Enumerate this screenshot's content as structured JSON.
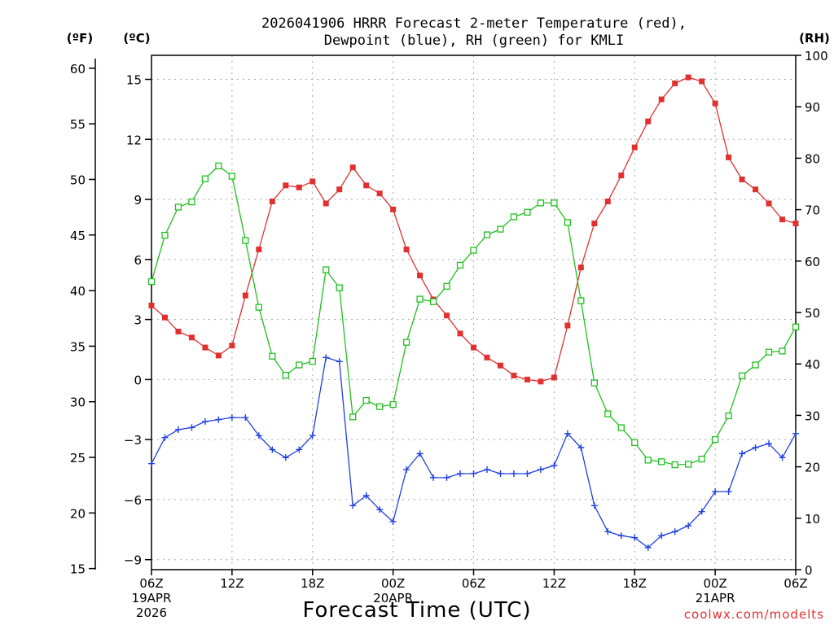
{
  "chart_data": {
    "type": "line",
    "title_line1": "2026041906 HRRR Forecast 2-meter Temperature (red),",
    "title_line2": "Dewpoint (blue), RH (green) for KMLI",
    "xlabel": "Forecast Time (UTC)",
    "credit": "coolwx.com/modelts",
    "units": {
      "fahrenheit": "(ºF)",
      "celsius": "(ºC)",
      "rh": "(RH)"
    },
    "x_range_hours": [
      0,
      48
    ],
    "celsius_ylim": [
      -9.5,
      16.2
    ],
    "rh_ylim": [
      0,
      100
    ],
    "celsius_ticks": [
      {
        "value": 15,
        "label": "15"
      },
      {
        "value": 12,
        "label": "12"
      },
      {
        "value": 9,
        "label": "9"
      },
      {
        "value": 6,
        "label": "6"
      },
      {
        "value": 3,
        "label": "3"
      },
      {
        "value": 0,
        "label": "0"
      },
      {
        "value": -3,
        "label": "−3"
      },
      {
        "value": -6,
        "label": "−6"
      },
      {
        "value": -9,
        "label": "−9"
      }
    ],
    "fahrenheit_ticks": [
      "60",
      "55",
      "50",
      "45",
      "40",
      "35",
      "30",
      "25",
      "20",
      "15"
    ],
    "rh_ticks": [
      "100",
      "90",
      "80",
      "70",
      "60",
      "50",
      "40",
      "30",
      "20",
      "10",
      "0"
    ],
    "x_ticks": [
      {
        "hour": 0,
        "label": "06Z",
        "date": "19APR",
        "year": "2026"
      },
      {
        "hour": 6,
        "label": "12Z"
      },
      {
        "hour": 12,
        "label": "18Z"
      },
      {
        "hour": 18,
        "label": "00Z",
        "date": "20APR"
      },
      {
        "hour": 24,
        "label": "06Z"
      },
      {
        "hour": 30,
        "label": "12Z"
      },
      {
        "hour": 36,
        "label": "18Z"
      },
      {
        "hour": 42,
        "label": "00Z",
        "date": "21APR"
      },
      {
        "hour": 48,
        "label": "06Z"
      }
    ],
    "series": [
      {
        "name": "2-meter Temperature",
        "axis": "celsius",
        "color": "#e03030",
        "marker": "filled-square",
        "values": [
          3.7,
          3.1,
          2.4,
          2.1,
          1.6,
          1.2,
          1.7,
          4.2,
          6.5,
          8.9,
          9.7,
          9.6,
          9.9,
          8.8,
          9.5,
          10.6,
          9.7,
          9.3,
          8.5,
          6.5,
          5.2,
          4.0,
          3.2,
          2.3,
          1.6,
          1.1,
          0.7,
          0.2,
          0.0,
          -0.1,
          0.1,
          2.7,
          5.6,
          7.8,
          8.9,
          10.2,
          11.6,
          12.9,
          14.0,
          14.8,
          15.1,
          14.9,
          13.8,
          11.1,
          10.0,
          9.5,
          8.8,
          8.0,
          7.8
        ]
      },
      {
        "name": "Dewpoint",
        "axis": "celsius",
        "color": "#2040e0",
        "marker": "plus",
        "values": [
          -4.2,
          -2.9,
          -2.5,
          -2.4,
          -2.1,
          -2.0,
          -1.9,
          -1.9,
          -2.8,
          -3.5,
          -3.9,
          -3.5,
          -2.8,
          1.1,
          0.9,
          -6.3,
          -5.8,
          -6.5,
          -7.1,
          -4.5,
          -3.7,
          -4.9,
          -4.9,
          -4.7,
          -4.7,
          -4.5,
          -4.7,
          -4.7,
          -4.7,
          -4.5,
          -4.3,
          -2.7,
          -3.4,
          -6.3,
          -7.6,
          -7.8,
          -7.9,
          -8.4,
          -7.8,
          -7.6,
          -7.3,
          -6.6,
          -5.6,
          -5.6,
          -3.7,
          -3.4,
          -3.2,
          -3.9,
          -2.7
        ]
      },
      {
        "name": "RH",
        "axis": "rh",
        "color": "#20c020",
        "marker": "open-square",
        "values": [
          56,
          65,
          70.5,
          71.5,
          76,
          78.5,
          76.5,
          64,
          51,
          41.5,
          37.8,
          39.8,
          40.5,
          58.3,
          54.8,
          29.7,
          32.9,
          31.7,
          32.1,
          44.2,
          52.6,
          52.1,
          55.1,
          59.2,
          62.1,
          65.1,
          66.2,
          68.6,
          69.5,
          71.3,
          71.3,
          67.5,
          52.3,
          36.3,
          30.3,
          27.6,
          24.7,
          21.3,
          21.0,
          20.4,
          20.5,
          21.5,
          25.3,
          29.9,
          37.7,
          39.8,
          42.3,
          42.5,
          47.2
        ]
      }
    ]
  }
}
